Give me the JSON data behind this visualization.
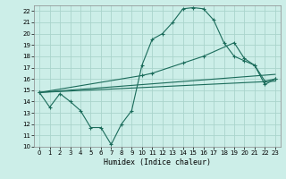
{
  "xlabel": "Humidex (Indice chaleur)",
  "background_color": "#cceee8",
  "grid_color": "#aad4cc",
  "line_color": "#1a6b5a",
  "xlim": [
    -0.5,
    23.5
  ],
  "ylim": [
    10,
    22.5
  ],
  "yticks": [
    10,
    11,
    12,
    13,
    14,
    15,
    16,
    17,
    18,
    19,
    20,
    21,
    22
  ],
  "xticks": [
    0,
    1,
    2,
    3,
    4,
    5,
    6,
    7,
    8,
    9,
    10,
    11,
    12,
    13,
    14,
    15,
    16,
    17,
    18,
    19,
    20,
    21,
    22,
    23
  ],
  "line1_x": [
    0,
    1,
    2,
    3,
    4,
    5,
    6,
    7,
    8,
    9,
    10,
    11,
    12,
    13,
    14,
    15,
    16,
    17,
    18,
    19,
    20,
    21,
    22,
    23
  ],
  "line1_y": [
    14.8,
    13.5,
    14.7,
    14.0,
    13.2,
    11.7,
    11.7,
    10.2,
    12.0,
    13.2,
    17.2,
    19.5,
    20.0,
    21.0,
    22.2,
    22.3,
    22.2,
    21.2,
    19.2,
    18.0,
    17.6,
    17.2,
    15.8,
    16.0
  ],
  "line2_x": [
    0,
    10,
    11,
    14,
    16,
    19,
    20,
    21,
    22,
    23
  ],
  "line2_y": [
    14.8,
    16.3,
    16.5,
    17.4,
    18.0,
    19.2,
    17.8,
    17.2,
    15.5,
    16.0
  ],
  "line3_x": [
    0,
    23
  ],
  "line3_y": [
    14.8,
    15.8
  ],
  "line4_x": [
    0,
    23
  ],
  "line4_y": [
    14.8,
    16.4
  ]
}
